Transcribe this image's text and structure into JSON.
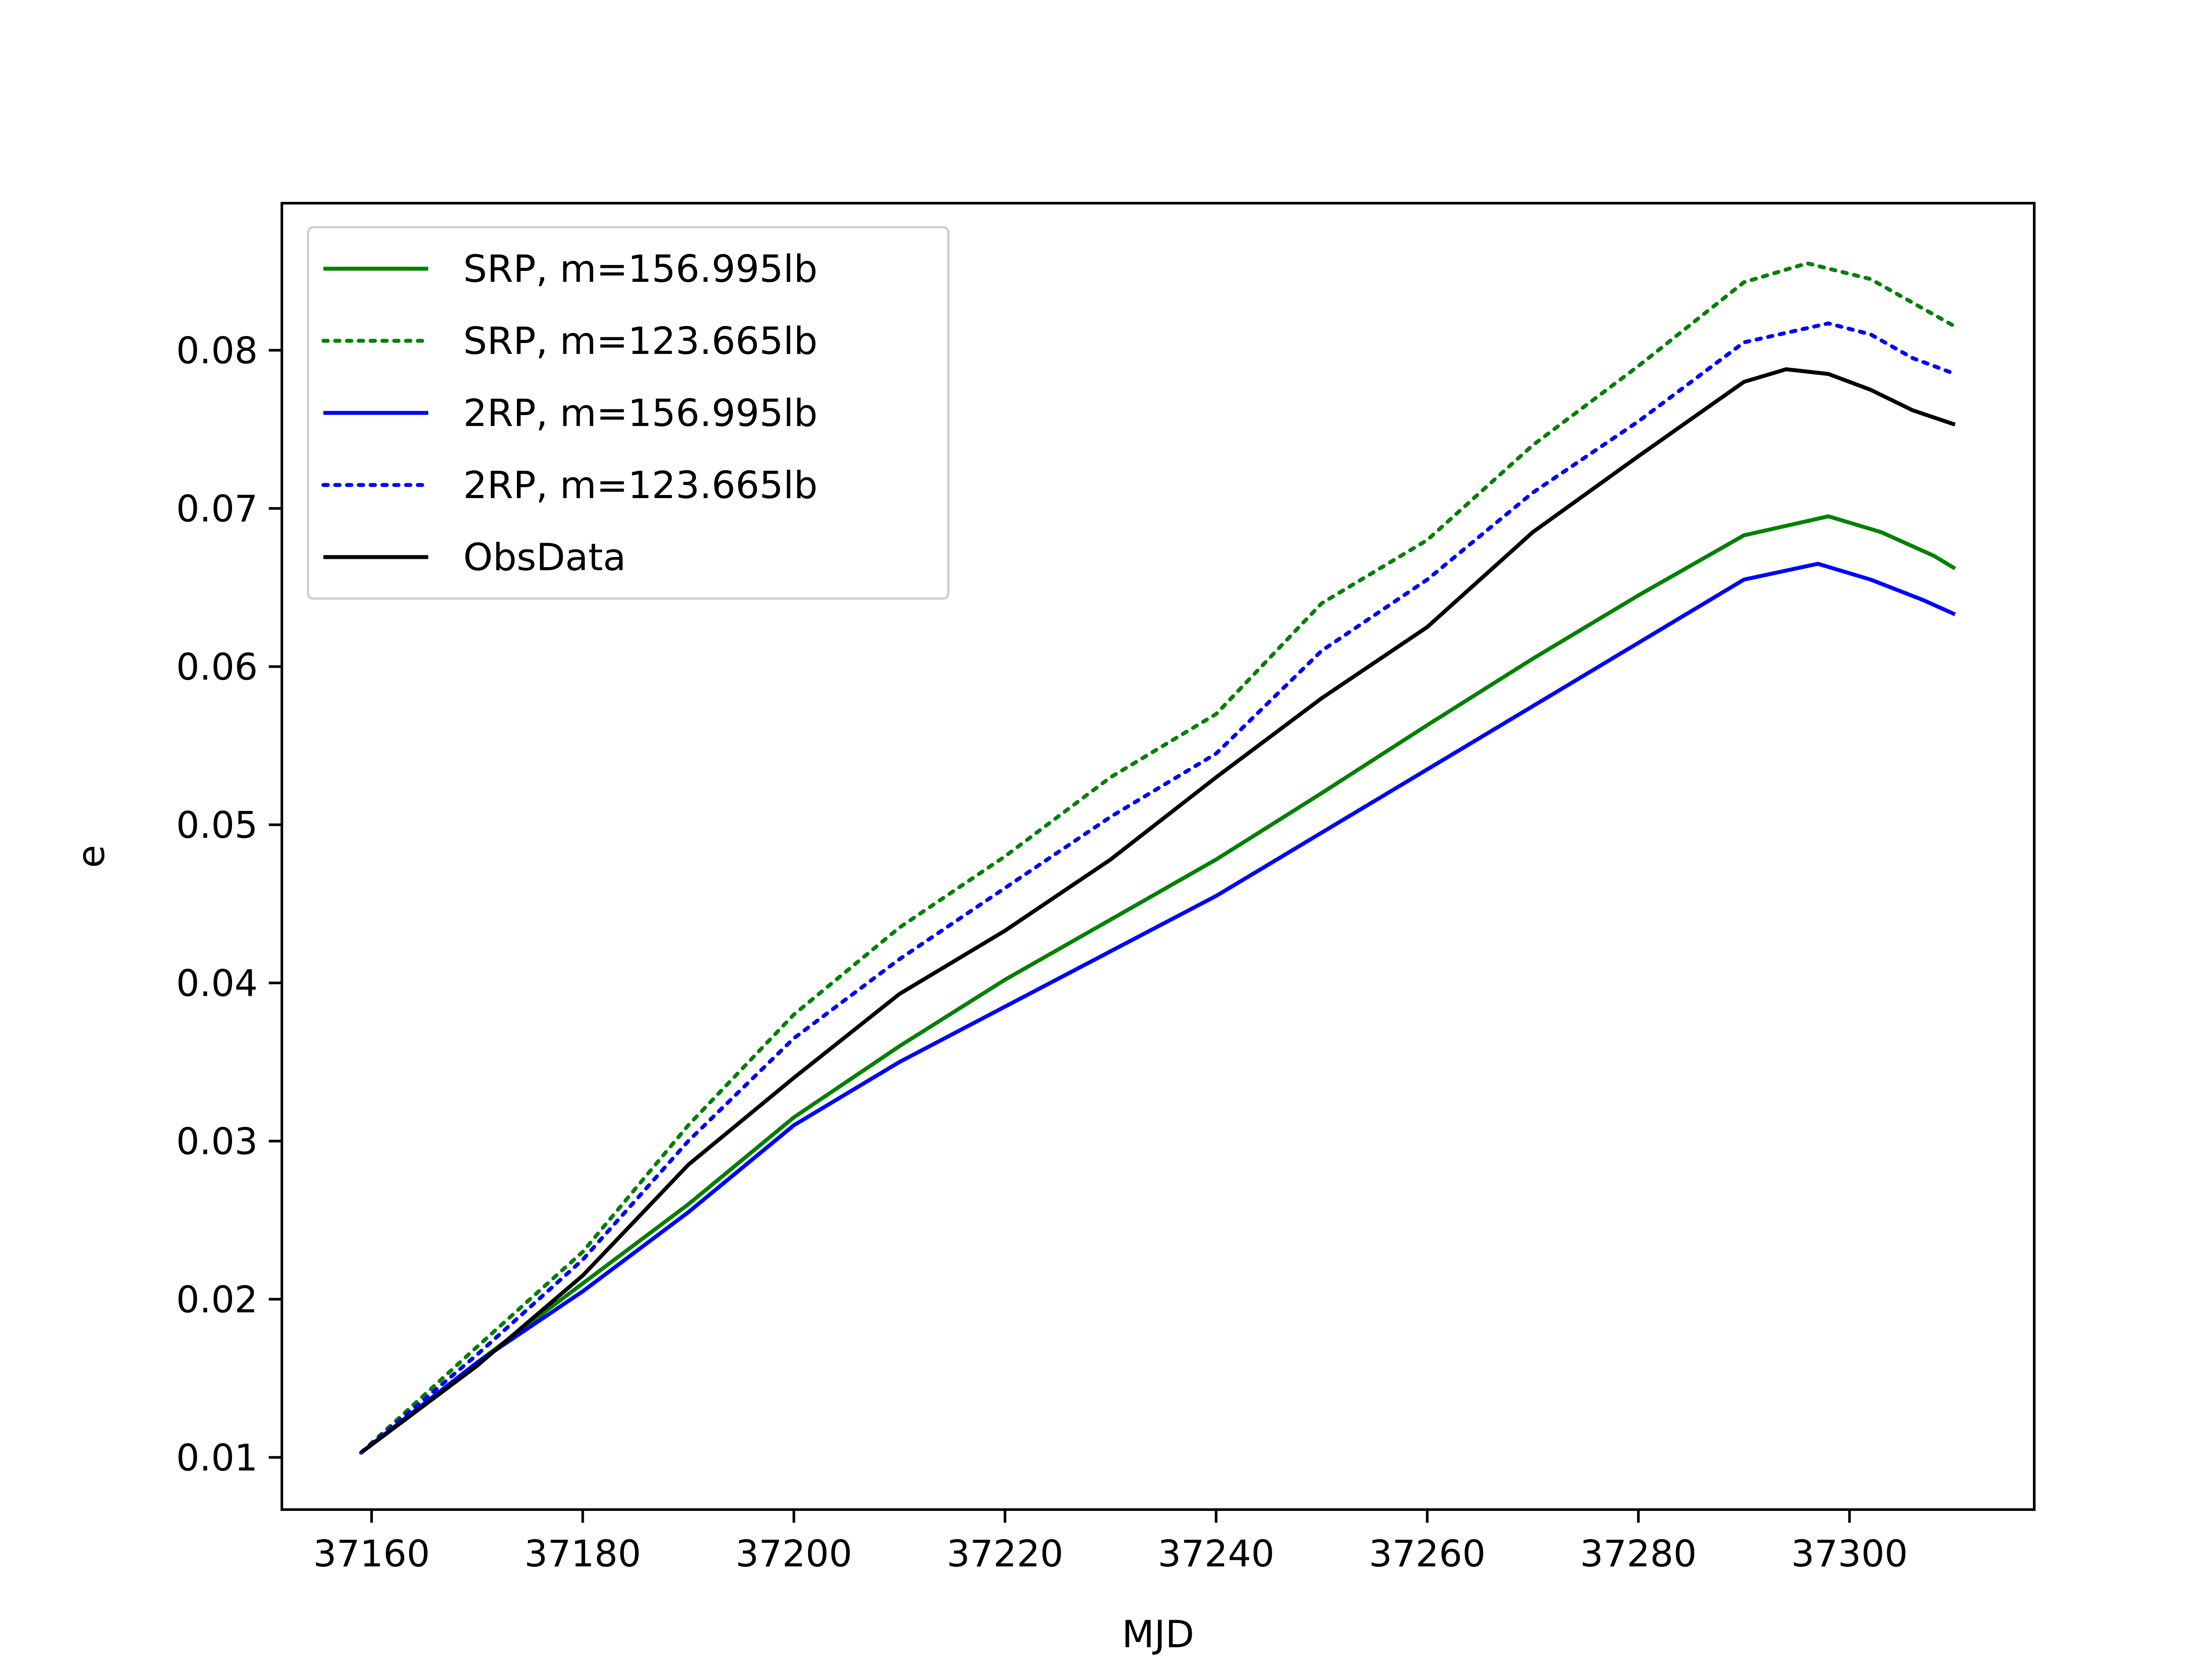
{
  "chart_data": {
    "type": "line",
    "title": "",
    "xlabel": "MJD",
    "ylabel": "e",
    "xlim": [
      37151.5,
      37317.5
    ],
    "ylim": [
      0.0067,
      0.0893
    ],
    "xticks": [
      37160,
      37180,
      37200,
      37220,
      37240,
      37260,
      37280,
      37300
    ],
    "xtick_labels": [
      "37160",
      "37180",
      "37200",
      "37220",
      "37240",
      "37260",
      "37280",
      "37300"
    ],
    "yticks": [
      0.01,
      0.02,
      0.03,
      0.04,
      0.05,
      0.06,
      0.07,
      0.08
    ],
    "ytick_labels": [
      "0.01",
      "0.02",
      "0.03",
      "0.04",
      "0.05",
      "0.06",
      "0.07",
      "0.08"
    ],
    "grid": false,
    "legend_position": "top-left",
    "series": [
      {
        "name": "SRP, m=156.995lb",
        "color": "#008000",
        "style": "solid",
        "x": [
          37159,
          37170,
          37180,
          37190,
          37200,
          37210,
          37220,
          37230,
          37240,
          37250,
          37260,
          37270,
          37280,
          37290,
          37298,
          37303,
          37308,
          37310
        ],
        "y": [
          0.0103,
          0.016,
          0.021,
          0.026,
          0.0315,
          0.036,
          0.0402,
          0.044,
          0.0478,
          0.052,
          0.0563,
          0.0605,
          0.0645,
          0.0683,
          0.0695,
          0.0685,
          0.067,
          0.0662
        ]
      },
      {
        "name": "SRP, m=123.665lb",
        "color": "#008000",
        "style": "dotted",
        "x": [
          37159,
          37170,
          37180,
          37190,
          37200,
          37210,
          37220,
          37230,
          37240,
          37250,
          37260,
          37270,
          37280,
          37290,
          37296,
          37302,
          37306,
          37310
        ],
        "y": [
          0.0103,
          0.017,
          0.023,
          0.031,
          0.038,
          0.0435,
          0.048,
          0.053,
          0.057,
          0.064,
          0.068,
          0.074,
          0.079,
          0.0843,
          0.0855,
          0.0845,
          0.083,
          0.0815
        ]
      },
      {
        "name": "2RP, m=156.995lb",
        "color": "#0000ff",
        "style": "solid",
        "x": [
          37159,
          37170,
          37180,
          37190,
          37200,
          37210,
          37220,
          37230,
          37240,
          37250,
          37260,
          37270,
          37280,
          37290,
          37297,
          37302,
          37307,
          37310
        ],
        "y": [
          0.0103,
          0.016,
          0.0205,
          0.0255,
          0.031,
          0.035,
          0.0385,
          0.042,
          0.0455,
          0.0495,
          0.0535,
          0.0575,
          0.0615,
          0.0655,
          0.0665,
          0.0655,
          0.0642,
          0.0633
        ]
      },
      {
        "name": "2RP, m=123.665lb",
        "color": "#0000ff",
        "style": "dotted",
        "x": [
          37159,
          37170,
          37180,
          37190,
          37200,
          37210,
          37220,
          37230,
          37240,
          37250,
          37260,
          37270,
          37280,
          37290,
          37298,
          37302,
          37306,
          37310
        ],
        "y": [
          0.0103,
          0.0165,
          0.0225,
          0.03,
          0.0365,
          0.0415,
          0.046,
          0.0505,
          0.0545,
          0.061,
          0.0655,
          0.071,
          0.0755,
          0.0805,
          0.0817,
          0.081,
          0.0795,
          0.0785
        ]
      },
      {
        "name": "ObsData",
        "color": "#000000",
        "style": "solid",
        "x": [
          37159,
          37170,
          37180,
          37190,
          37200,
          37210,
          37220,
          37230,
          37240,
          37250,
          37260,
          37270,
          37280,
          37290,
          37294,
          37298,
          37302,
          37306,
          37310
        ],
        "y": [
          0.0103,
          0.0158,
          0.0215,
          0.0285,
          0.034,
          0.0393,
          0.0433,
          0.0478,
          0.053,
          0.058,
          0.0625,
          0.0685,
          0.0733,
          0.078,
          0.0788,
          0.0785,
          0.0775,
          0.0762,
          0.0753
        ]
      }
    ]
  }
}
